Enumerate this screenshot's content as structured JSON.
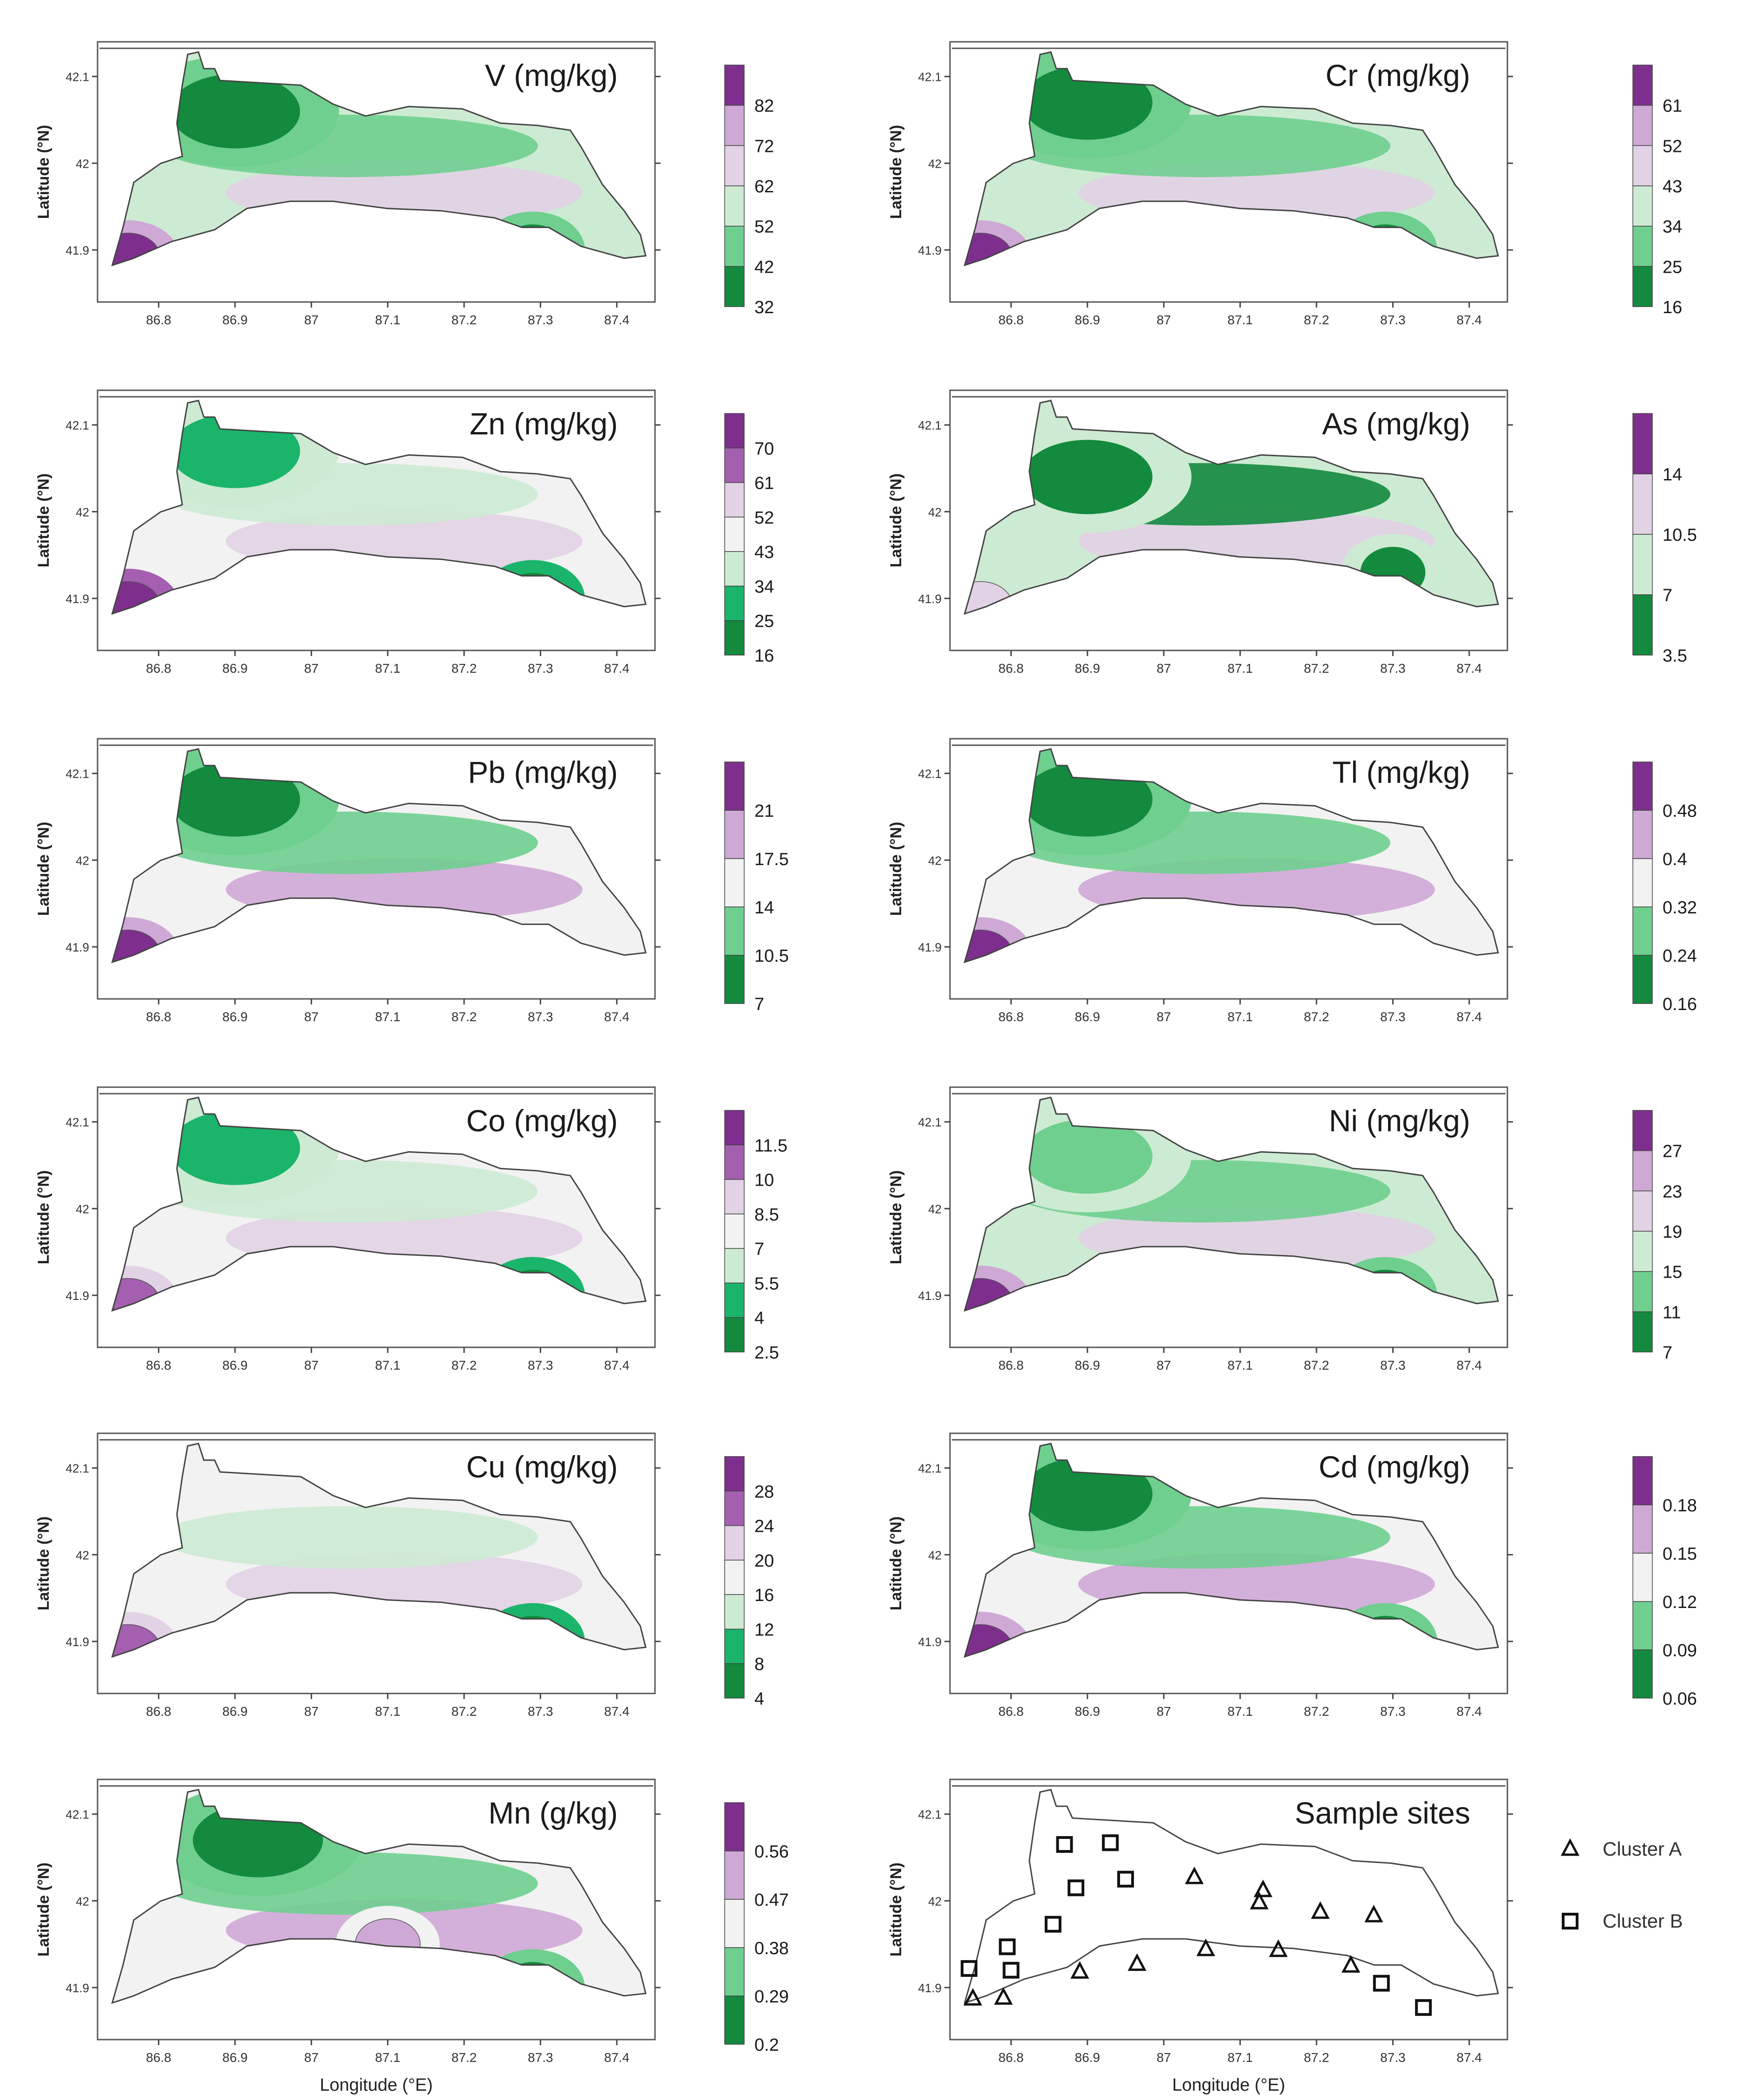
{
  "figure": {
    "lon_ticks": [
      "86.8",
      "86.9",
      "87",
      "87.1",
      "87.2",
      "87.3",
      "87.4"
    ],
    "lat_ticks": [
      "41.9",
      "42",
      "42.1"
    ],
    "xlabel": "Longitude (°E)",
    "ylabel": "Latitude (°N)",
    "colors": {
      "green_dark": "#138a3e",
      "green_mid": "#1ab56a",
      "green_light": "#6fcf8f",
      "green_pale": "#cdebd3",
      "neutral": "#f2f2f2",
      "lilac_pale": "#e2d2e6",
      "lilac": "#cfa9d6",
      "purple": "#a45fb0",
      "purple_dark": "#7e2f8e"
    }
  },
  "chart_data": [
    {
      "type": "heatmap",
      "title": "V (mg/kg)",
      "xlabel": "",
      "ylabel": "Latitude (°N)",
      "xlim": [
        86.72,
        87.45
      ],
      "ylim": [
        41.84,
        42.14
      ],
      "colorbar": {
        "ticks": [
          "82",
          "72",
          "62",
          "52",
          "42",
          "32"
        ],
        "min": 32,
        "max": 92,
        "step": 10
      },
      "features": [
        {
          "name": "high-V sediment patch",
          "lon": 86.76,
          "lat": 41.89,
          "level": 82
        },
        {
          "name": "low-V north cove",
          "lon": 86.9,
          "lat": 42.06,
          "level": 32
        },
        {
          "name": "low-V south bay",
          "lon": 87.29,
          "lat": 41.9,
          "level": 32
        }
      ]
    },
    {
      "type": "heatmap",
      "title": "Cr (mg/kg)",
      "xlabel": "",
      "ylabel": "Latitude (°N)",
      "xlim": [
        86.72,
        87.45
      ],
      "ylim": [
        41.84,
        42.14
      ],
      "colorbar": {
        "ticks": [
          "61",
          "52",
          "43",
          "34",
          "25",
          "16"
        ],
        "min": 16,
        "max": 70,
        "step": 9
      },
      "features": [
        {
          "name": "high-Cr patch",
          "lon": 86.76,
          "lat": 41.89,
          "level": 61
        },
        {
          "name": "low-Cr north cove",
          "lon": 86.9,
          "lat": 42.07,
          "level": 16
        },
        {
          "name": "low-Cr south bay",
          "lon": 87.29,
          "lat": 41.9,
          "level": 16
        }
      ]
    },
    {
      "type": "heatmap",
      "title": "Zn (mg/kg)",
      "xlabel": "",
      "ylabel": "Latitude (°N)",
      "xlim": [
        86.72,
        87.45
      ],
      "ylim": [
        41.84,
        42.14
      ],
      "colorbar": {
        "ticks": [
          "70",
          "61",
          "52",
          "43",
          "34",
          "25",
          "16"
        ],
        "min": 16,
        "max": 79,
        "step": 9
      },
      "features": [
        {
          "name": "high-Zn patch",
          "lon": 86.76,
          "lat": 41.89,
          "level": 70
        },
        {
          "name": "low-Zn north",
          "lon": 86.9,
          "lat": 42.07,
          "level": 25
        },
        {
          "name": "low-Zn south bay",
          "lon": 87.29,
          "lat": 41.9,
          "level": 16
        }
      ]
    },
    {
      "type": "heatmap",
      "title": "As (mg/kg)",
      "xlabel": "",
      "ylabel": "Latitude (°N)",
      "xlim": [
        86.72,
        87.45
      ],
      "ylim": [
        41.84,
        42.14
      ],
      "colorbar": {
        "ticks": [
          "14",
          "10.5",
          "7",
          "3.5"
        ],
        "min": 3.5,
        "max": 17.5,
        "step": 3.5
      },
      "features": [
        {
          "name": "high-As southwest",
          "lon": 86.76,
          "lat": 41.89,
          "level": 10.5
        },
        {
          "name": "low-As north lobe",
          "lon": 86.9,
          "lat": 42.04,
          "level": 3.5
        },
        {
          "name": "low-As east",
          "lon": 87.3,
          "lat": 41.93,
          "level": 3.5
        }
      ]
    },
    {
      "type": "heatmap",
      "title": "Pb (mg/kg)",
      "xlabel": "",
      "ylabel": "Latitude (°N)",
      "xlim": [
        86.72,
        87.45
      ],
      "ylim": [
        41.84,
        42.14
      ],
      "colorbar": {
        "ticks": [
          "21",
          "17.5",
          "14",
          "10.5",
          "7"
        ],
        "min": 7,
        "max": 24.5,
        "step": 3.5
      },
      "features": [
        {
          "name": "high-Pb patch",
          "lon": 86.76,
          "lat": 41.89,
          "level": 21
        },
        {
          "name": "low-Pb north cove",
          "lon": 86.9,
          "lat": 42.07,
          "level": 7
        }
      ]
    },
    {
      "type": "heatmap",
      "title": "Tl (mg/kg)",
      "xlabel": "",
      "ylabel": "Latitude (°N)",
      "xlim": [
        86.72,
        87.45
      ],
      "ylim": [
        41.84,
        42.14
      ],
      "colorbar": {
        "ticks": [
          "0.48",
          "0.4",
          "0.32",
          "0.24",
          "0.16"
        ],
        "min": 0.16,
        "max": 0.56,
        "step": 0.08
      },
      "features": [
        {
          "name": "high-Tl patch",
          "lon": 86.76,
          "lat": 41.89,
          "level": 0.48
        },
        {
          "name": "low-Tl north cove",
          "lon": 86.9,
          "lat": 42.07,
          "level": 0.16
        }
      ]
    },
    {
      "type": "heatmap",
      "title": "Co (mg/kg)",
      "xlabel": "",
      "ylabel": "Latitude (°N)",
      "xlim": [
        86.72,
        87.45
      ],
      "ylim": [
        41.84,
        42.14
      ],
      "colorbar": {
        "ticks": [
          "11.5",
          "10",
          "8.5",
          "7",
          "5.5",
          "4",
          "2.5"
        ],
        "min": 2.5,
        "max": 13,
        "step": 1.5
      },
      "features": [
        {
          "name": "high-Co patch",
          "lon": 86.76,
          "lat": 41.89,
          "level": 10
        },
        {
          "name": "low-Co north",
          "lon": 86.9,
          "lat": 42.07,
          "level": 4
        },
        {
          "name": "low-Co south bay",
          "lon": 87.29,
          "lat": 41.9,
          "level": 2.5
        }
      ]
    },
    {
      "type": "heatmap",
      "title": "Ni (mg/kg)",
      "xlabel": "",
      "ylabel": "Latitude (°N)",
      "xlim": [
        86.72,
        87.45
      ],
      "ylim": [
        41.84,
        42.14
      ],
      "colorbar": {
        "ticks": [
          "27",
          "23",
          "19",
          "15",
          "11",
          "7"
        ],
        "min": 7,
        "max": 31,
        "step": 4
      },
      "features": [
        {
          "name": "high-Ni patch",
          "lon": 86.76,
          "lat": 41.89,
          "level": 27
        },
        {
          "name": "low-Ni north",
          "lon": 86.9,
          "lat": 42.06,
          "level": 11
        },
        {
          "name": "low-Ni south bay",
          "lon": 87.29,
          "lat": 41.9,
          "level": 7
        }
      ]
    },
    {
      "type": "heatmap",
      "title": "Cu (mg/kg)",
      "xlabel": "",
      "ylabel": "Latitude (°N)",
      "xlim": [
        86.72,
        87.45
      ],
      "ylim": [
        41.84,
        42.14
      ],
      "colorbar": {
        "ticks": [
          "28",
          "24",
          "20",
          "16",
          "12",
          "8",
          "4"
        ],
        "min": 4,
        "max": 32,
        "step": 4
      },
      "features": [
        {
          "name": "high-Cu patch",
          "lon": 86.76,
          "lat": 41.89,
          "level": 24
        },
        {
          "name": "low-Cu south bay",
          "lon": 87.29,
          "lat": 41.9,
          "level": 4
        }
      ]
    },
    {
      "type": "heatmap",
      "title": "Cd (mg/kg)",
      "xlabel": "",
      "ylabel": "Latitude (°N)",
      "xlim": [
        86.72,
        87.45
      ],
      "ylim": [
        41.84,
        42.14
      ],
      "colorbar": {
        "ticks": [
          "0.18",
          "0.15",
          "0.12",
          "0.09",
          "0.06"
        ],
        "min": 0.06,
        "max": 0.21,
        "step": 0.03
      },
      "features": [
        {
          "name": "high-Cd patch",
          "lon": 86.76,
          "lat": 41.89,
          "level": 0.18
        },
        {
          "name": "low-Cd north",
          "lon": 86.9,
          "lat": 42.07,
          "level": 0.06
        },
        {
          "name": "low-Cd south bay",
          "lon": 87.29,
          "lat": 41.9,
          "level": 0.06
        }
      ]
    },
    {
      "type": "heatmap",
      "title": "Mn (g/kg)",
      "xlabel": "Longitude (°E)",
      "ylabel": "Latitude (°N)",
      "xlim": [
        86.72,
        87.45
      ],
      "ylim": [
        41.84,
        42.14
      ],
      "colorbar": {
        "ticks": [
          "0.56",
          "0.47",
          "0.38",
          "0.29",
          "0.2"
        ],
        "min": 0.2,
        "max": 0.65,
        "step": 0.09
      },
      "features": [
        {
          "name": "high-Mn central",
          "lon": 87.1,
          "lat": 41.95,
          "level": 0.47
        },
        {
          "name": "low-Mn north",
          "lon": 86.93,
          "lat": 42.07,
          "level": 0.2
        },
        {
          "name": "low-Mn south bay",
          "lon": 87.29,
          "lat": 41.9,
          "level": 0.2
        }
      ]
    },
    {
      "type": "scatter",
      "title": "Sample sites",
      "xlabel": "Longitude (°E)",
      "ylabel": "Latitude (°N)",
      "xlim": [
        86.72,
        87.45
      ],
      "ylim": [
        41.84,
        42.14
      ],
      "series": [
        {
          "name": "Cluster A",
          "marker": "triangle",
          "points": [
            [
              86.75,
              41.887
            ],
            [
              86.79,
              41.888
            ],
            [
              86.89,
              41.918
            ],
            [
              86.965,
              41.927
            ],
            [
              87.04,
              42.027
            ],
            [
              87.055,
              41.944
            ],
            [
              87.125,
              41.998
            ],
            [
              87.13,
              42.012
            ],
            [
              87.15,
              41.943
            ],
            [
              87.205,
              41.987
            ],
            [
              87.245,
              41.925
            ],
            [
              87.275,
              41.983
            ]
          ]
        },
        {
          "name": "Cluster B",
          "marker": "square",
          "points": [
            [
              86.745,
              41.922
            ],
            [
              86.795,
              41.947
            ],
            [
              86.8,
              41.92
            ],
            [
              86.855,
              41.973
            ],
            [
              86.87,
              42.065
            ],
            [
              86.885,
              42.015
            ],
            [
              86.93,
              42.067
            ],
            [
              86.95,
              42.025
            ],
            [
              87.285,
              41.905
            ],
            [
              87.34,
              41.877
            ]
          ]
        }
      ],
      "legend": {
        "position": "right",
        "entries": [
          "Cluster A",
          "Cluster B"
        ]
      }
    }
  ]
}
